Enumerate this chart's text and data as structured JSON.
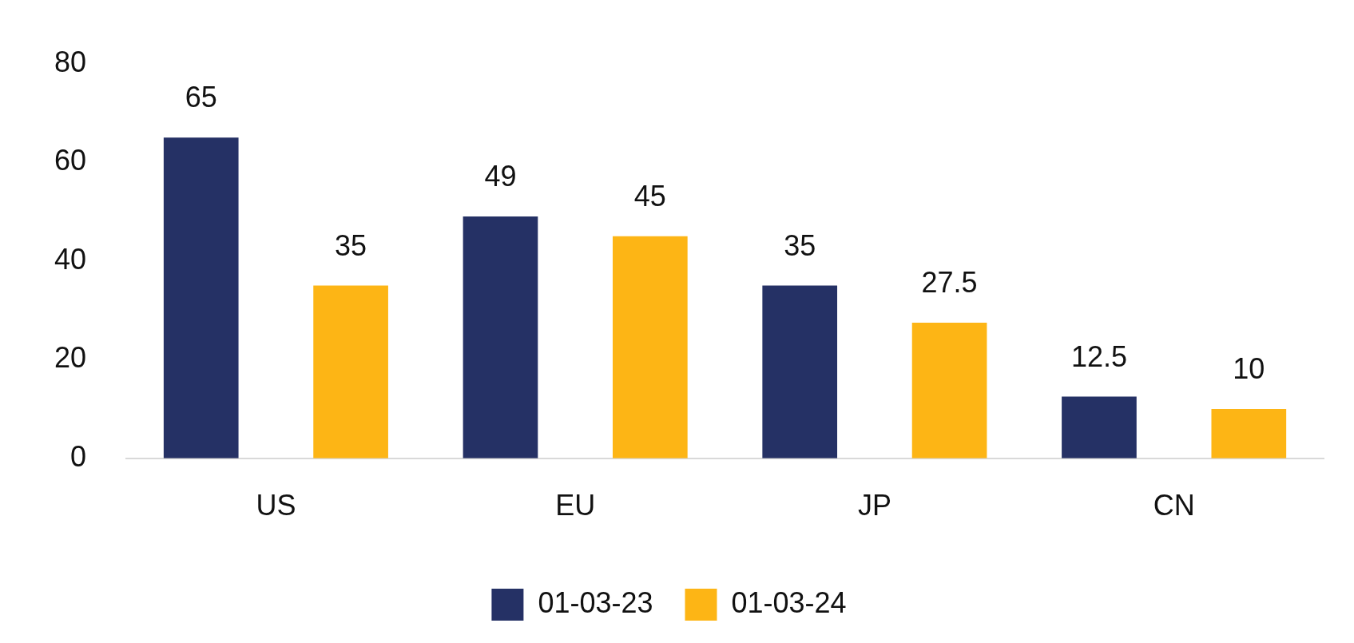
{
  "chart_data": {
    "type": "bar",
    "categories": [
      "US",
      "EU",
      "JP",
      "CN"
    ],
    "series": [
      {
        "name": "01-03-23",
        "color": "#253165",
        "values": [
          65,
          49,
          35,
          12.5
        ]
      },
      {
        "name": "01-03-24",
        "color": "#fdb515",
        "values": [
          35,
          45,
          27.5,
          10
        ]
      }
    ],
    "ylim": [
      0,
      80
    ],
    "yticks": [
      0,
      20,
      40,
      60,
      80
    ],
    "grid": false,
    "legend": "bottom",
    "data_labels": true
  }
}
